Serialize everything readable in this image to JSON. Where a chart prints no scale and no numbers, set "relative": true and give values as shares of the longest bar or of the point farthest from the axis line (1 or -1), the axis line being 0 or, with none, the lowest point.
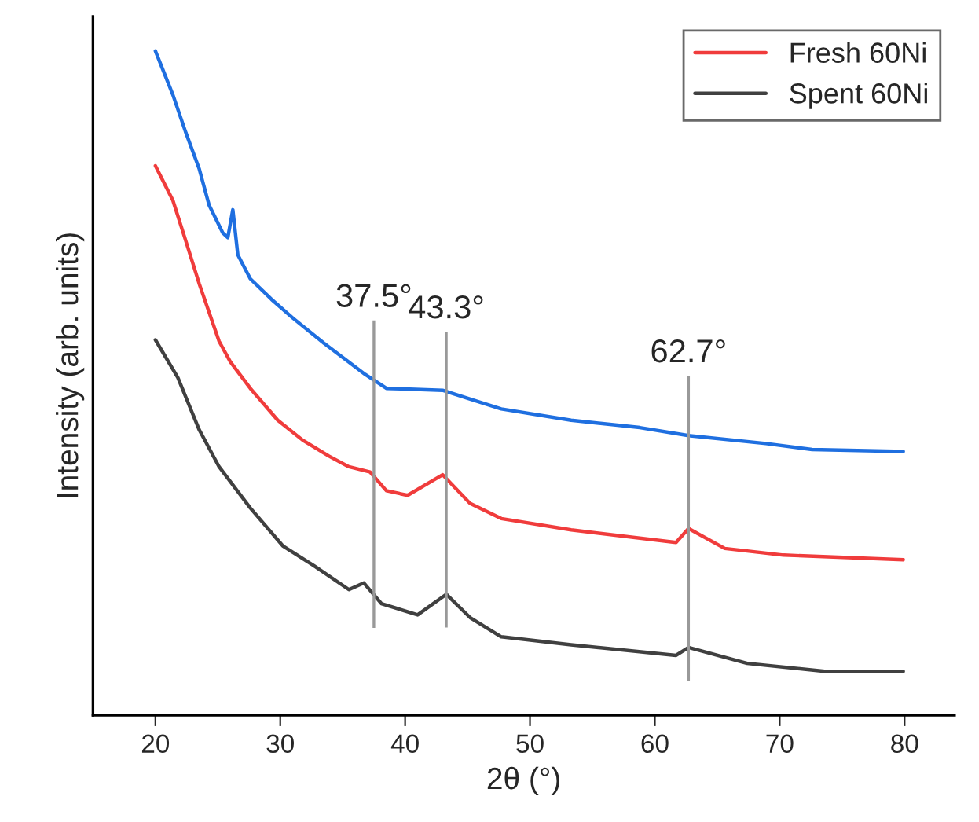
{
  "chart_data": {
    "type": "line",
    "relative": true,
    "xlabel": "2θ (°)",
    "ylabel": "Intensity (arb. units)",
    "xlim": [
      15,
      84
    ],
    "xticks": [
      20,
      30,
      40,
      50,
      60,
      70,
      80
    ],
    "legend": "top right",
    "grid": false,
    "series": [
      {
        "color": "#1f6fe0",
        "x": [
          20,
          21.4,
          22.4,
          23.5,
          24.3,
          25.4,
          25.8,
          26.2,
          26.6,
          27.6,
          29.3,
          31,
          33.5,
          36.8,
          38.5,
          43,
          47.7,
          53.3,
          58.8,
          62.7,
          68.9,
          72.6,
          79.9
        ],
        "values": [
          1.0,
          0.934,
          0.879,
          0.823,
          0.768,
          0.726,
          0.719,
          0.761,
          0.693,
          0.657,
          0.626,
          0.598,
          0.56,
          0.513,
          0.492,
          0.489,
          0.461,
          0.444,
          0.433,
          0.421,
          0.409,
          0.4,
          0.397
        ]
      },
      {
        "name": "Fresh 60Ni",
        "color": "#f03c3c",
        "x": [
          20,
          21.4,
          22.4,
          23.5,
          25.1,
          26,
          27.6,
          29.8,
          31.8,
          33.9,
          35.5,
          37.2,
          38.5,
          40.2,
          43,
          45.2,
          47.7,
          53.3,
          61.7,
          62.7,
          65.6,
          70.3,
          79.9
        ],
        "values": [
          0.827,
          0.775,
          0.716,
          0.65,
          0.563,
          0.532,
          0.492,
          0.444,
          0.414,
          0.39,
          0.374,
          0.366,
          0.338,
          0.331,
          0.362,
          0.319,
          0.296,
          0.279,
          0.26,
          0.281,
          0.251,
          0.241,
          0.234
        ]
      },
      {
        "name": "Spent 60Ni",
        "color": "#404040",
        "x": [
          20,
          21.8,
          23.5,
          25.1,
          27.6,
          30.2,
          32.7,
          35.5,
          36.7,
          38.1,
          41,
          43.3,
          45.2,
          47.7,
          53.3,
          61.7,
          62.7,
          67.4,
          73.6,
          79.9
        ],
        "values": [
          0.565,
          0.508,
          0.43,
          0.374,
          0.312,
          0.255,
          0.225,
          0.189,
          0.199,
          0.168,
          0.151,
          0.182,
          0.147,
          0.118,
          0.106,
          0.09,
          0.102,
          0.078,
          0.066,
          0.066
        ]
      }
    ],
    "ref_lines": [
      {
        "axis": "x",
        "value": 37.5,
        "label": "37.5°",
        "color": "#999999"
      },
      {
        "axis": "x",
        "value": 43.3,
        "label": "43.3°",
        "color": "#999999"
      },
      {
        "axis": "x",
        "value": 62.7,
        "label": "62.7°",
        "color": "#999999"
      }
    ]
  }
}
